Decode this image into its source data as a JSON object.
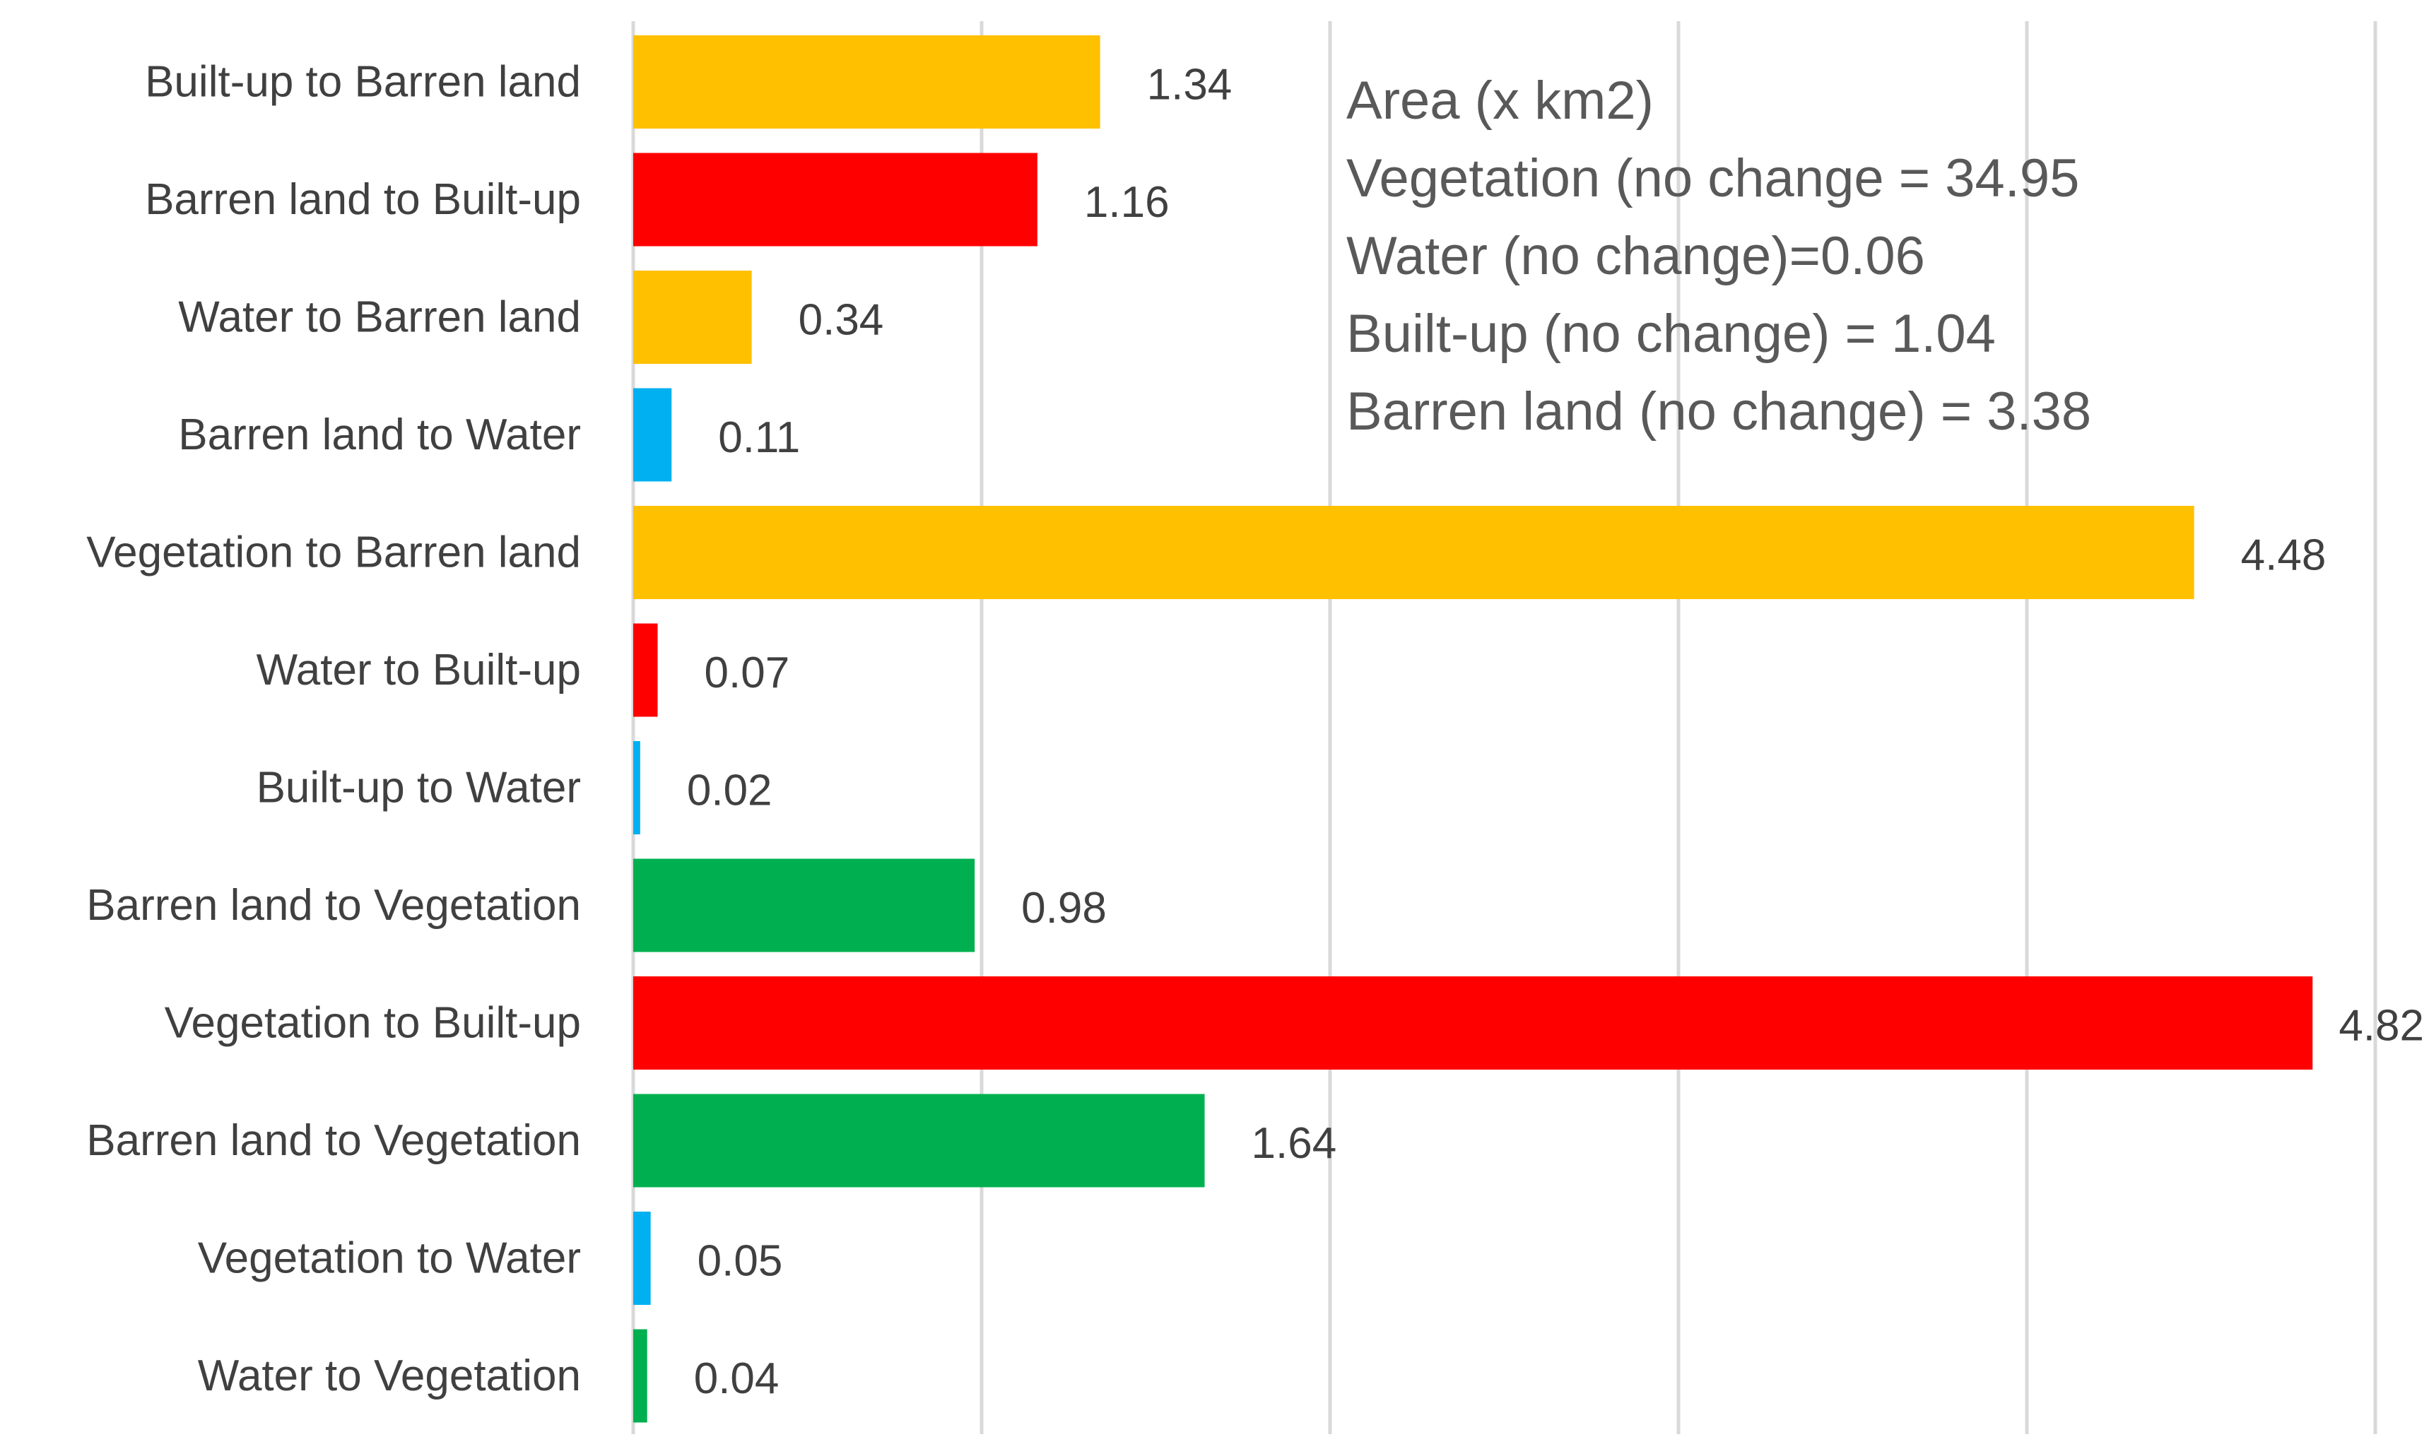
{
  "chart_data": {
    "type": "bar",
    "orientation": "horizontal",
    "categories": [
      "Built-up to Barren land",
      "Barren land to Built-up",
      "Water to Barren land",
      "Barren land to Water",
      "Vegetation to Barren land",
      "Water to Built-up",
      "Built-up to Water",
      "Barren land to Vegetation",
      "Vegetation to Built-up",
      "Barren land to Vegetation",
      "Vegetation to Water",
      "Water to Vegetation"
    ],
    "values": [
      1.34,
      1.16,
      0.34,
      0.11,
      4.48,
      0.07,
      0.02,
      0.98,
      4.82,
      1.64,
      0.05,
      0.04
    ],
    "value_labels": [
      "1.34",
      "1.16",
      "0.34",
      "0.11",
      "4.48",
      "0.07",
      "0.02",
      "0.98",
      "4.82",
      "1.64",
      "0.05",
      "0.04"
    ],
    "bar_colors": [
      "#FFC000",
      "#FF0000",
      "#FFC000",
      "#00B0F0",
      "#FFC000",
      "#FF0000",
      "#00B0F0",
      "#00B050",
      "#FF0000",
      "#00B050",
      "#00B0F0",
      "#00B050"
    ],
    "xlim": [
      0,
      5
    ],
    "grid": true,
    "gridline_values": [
      0,
      1,
      2,
      3,
      4,
      5
    ],
    "gridline_color": "#D9D9D9",
    "text_color": "#404040"
  },
  "annotation": {
    "lines": [
      "Area (x km2)",
      "Vegetation (no change = 34.95",
      "Water (no change)=0.06",
      "Built-up (no change) = 1.04",
      "Barren land (no change) = 3.38"
    ]
  }
}
